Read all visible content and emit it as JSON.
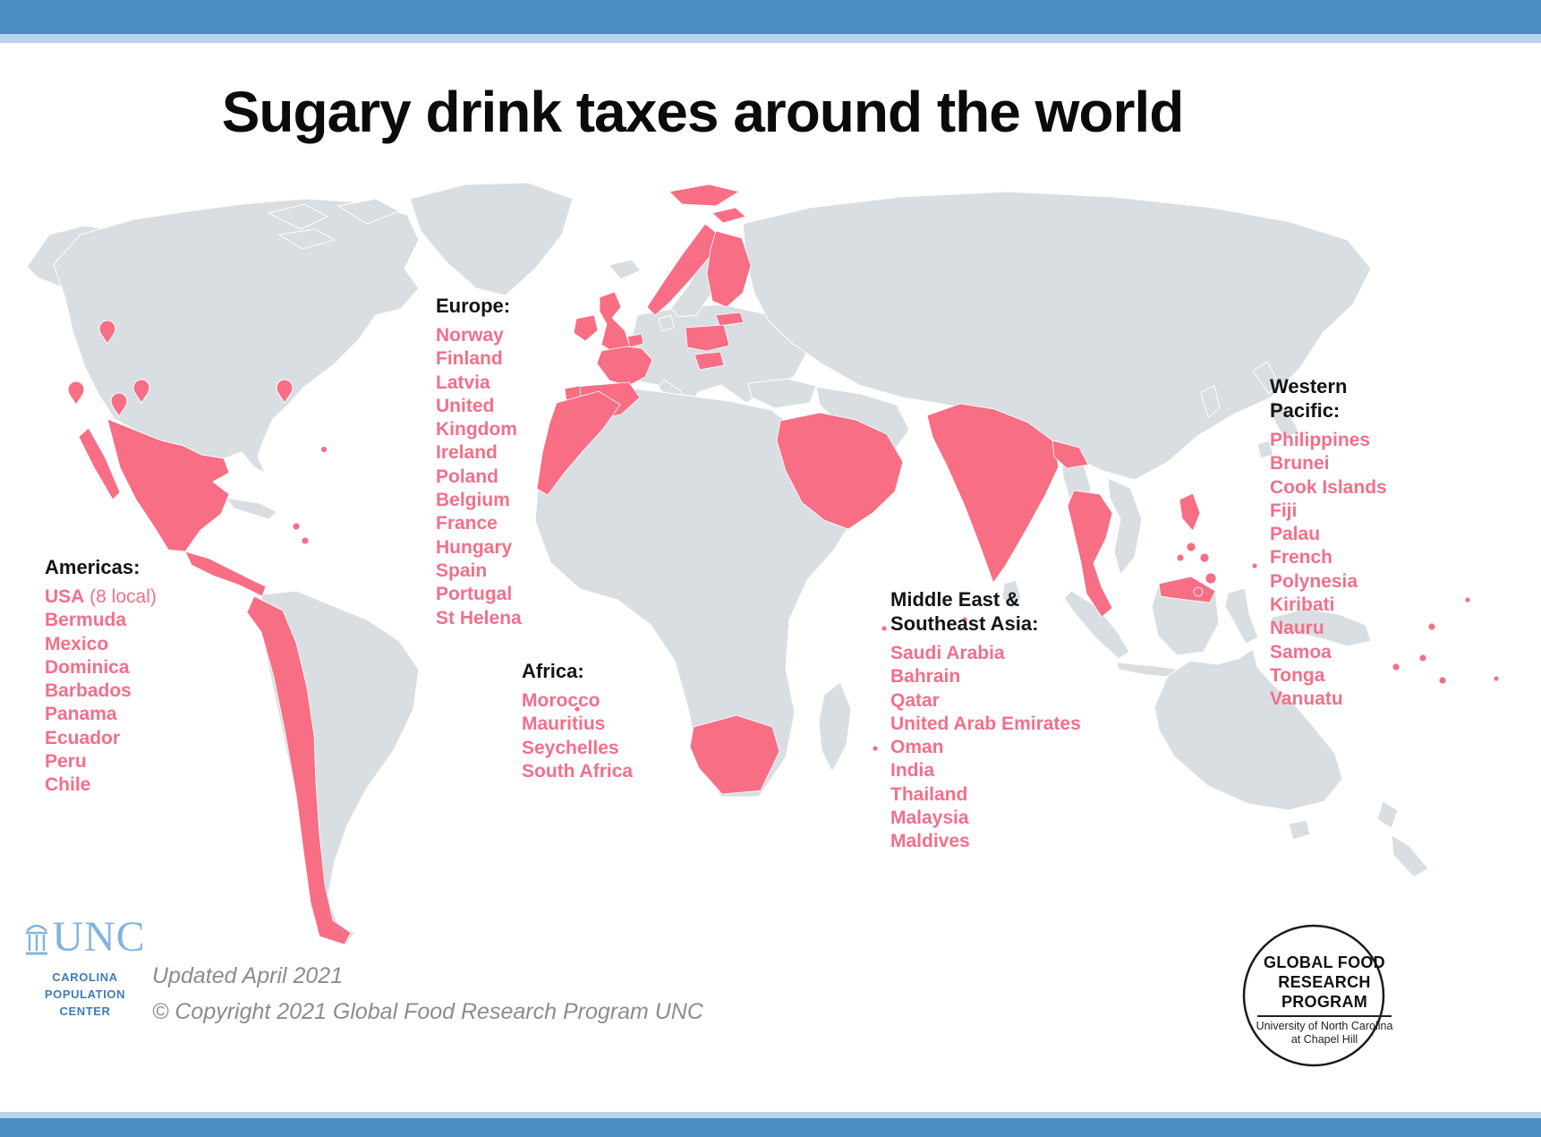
{
  "title": "Sugary drink taxes around the world",
  "regions": {
    "americas": {
      "heading": "Americas:",
      "items": [
        {
          "name": "USA",
          "note": "(8 local)"
        },
        "Bermuda",
        "Mexico",
        "Dominica",
        "Barbados",
        "Panama",
        "Ecuador",
        "Peru",
        "Chile"
      ]
    },
    "europe": {
      "heading": "Europe:",
      "items": [
        "Norway",
        "Finland",
        "Latvia",
        "United Kingdom",
        "Ireland",
        "Poland",
        "Belgium",
        "France",
        "Hungary",
        "Spain",
        "Portugal",
        "St Helena"
      ]
    },
    "africa": {
      "heading": "Africa:",
      "items": [
        "Morocco",
        "Mauritius",
        "Seychelles",
        "South Africa"
      ]
    },
    "middle_east": {
      "heading": "Middle East & Southeast Asia:",
      "items": [
        "Saudi Arabia",
        "Bahrain",
        "Qatar",
        "United Arab Emirates",
        "Oman",
        "India",
        "Thailand",
        "Malaysia",
        "Maldives"
      ]
    },
    "western_pacific": {
      "heading": "Western Pacific:",
      "items": [
        "Philippines",
        "Brunei",
        "Cook Islands",
        "Fiji",
        "Palau",
        "French Polynesia",
        "Kiribati",
        "Nauru",
        "Samoa",
        "Tonga",
        "Vanuatu"
      ]
    }
  },
  "footer": {
    "updated": "Updated April 2021",
    "copyright": "© Copyright 2021 Global Food Research Program UNC",
    "unc": {
      "wordmark": "UNC",
      "lines": [
        "CAROLINA",
        "POPULATION",
        "CENTER"
      ]
    },
    "gfrp": {
      "line1": "GLOBAL FOOD",
      "line2": "RESEARCH PROGRAM",
      "line3": "University of North Carolina",
      "line4": "at Chapel Hill"
    }
  },
  "colors": {
    "taxed": "#f76e85",
    "taxed_text": "#f2708a",
    "land": "#d9dee2",
    "bar_blue": "#4a8ec4",
    "bar_blue_light": "#b9d3ea"
  }
}
